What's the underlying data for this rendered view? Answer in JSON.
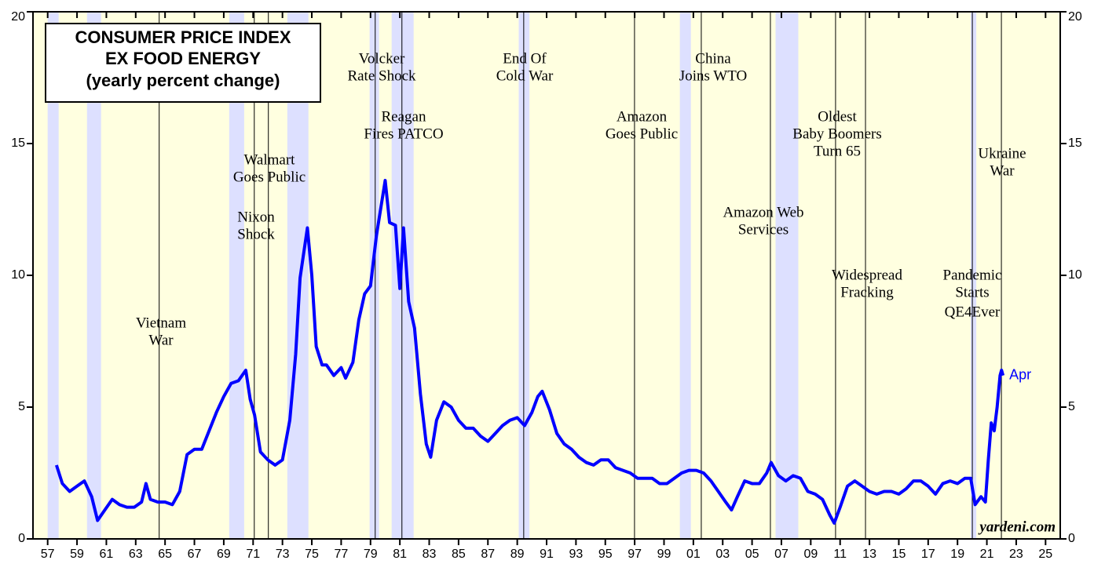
{
  "chart_data": {
    "type": "line",
    "title": [
      "CONSUMER PRICE INDEX",
      "EX FOOD ENERGY",
      "(yearly percent change)"
    ],
    "source": "yardeni.com",
    "end_label": "Apr",
    "xlim": [
      1956,
      2026
    ],
    "ylim": [
      0,
      20
    ],
    "yticks": [
      0,
      5,
      10,
      15,
      20
    ],
    "xticks": [
      {
        "value": 1957,
        "label": "57"
      },
      {
        "value": 1959,
        "label": "59"
      },
      {
        "value": 1961,
        "label": "61"
      },
      {
        "value": 1963,
        "label": "63"
      },
      {
        "value": 1965,
        "label": "65"
      },
      {
        "value": 1967,
        "label": "67"
      },
      {
        "value": 1969,
        "label": "69"
      },
      {
        "value": 1971,
        "label": "71"
      },
      {
        "value": 1973,
        "label": "73"
      },
      {
        "value": 1975,
        "label": "75"
      },
      {
        "value": 1977,
        "label": "77"
      },
      {
        "value": 1979,
        "label": "79"
      },
      {
        "value": 1981,
        "label": "81"
      },
      {
        "value": 1983,
        "label": "83"
      },
      {
        "value": 1985,
        "label": "85"
      },
      {
        "value": 1987,
        "label": "87"
      },
      {
        "value": 1989,
        "label": "89"
      },
      {
        "value": 1991,
        "label": "91"
      },
      {
        "value": 1993,
        "label": "93"
      },
      {
        "value": 1995,
        "label": "95"
      },
      {
        "value": 1997,
        "label": "97"
      },
      {
        "value": 1999,
        "label": "99"
      },
      {
        "value": 2001,
        "label": "01"
      },
      {
        "value": 2003,
        "label": "03"
      },
      {
        "value": 2005,
        "label": "05"
      },
      {
        "value": 2007,
        "label": "07"
      },
      {
        "value": 2009,
        "label": "09"
      },
      {
        "value": 2011,
        "label": "11"
      },
      {
        "value": 2013,
        "label": "13"
      },
      {
        "value": 2015,
        "label": "15"
      },
      {
        "value": 2017,
        "label": "17"
      },
      {
        "value": 2019,
        "label": "19"
      },
      {
        "value": 2021,
        "label": "21"
      },
      {
        "value": 2023,
        "label": "23"
      },
      {
        "value": 2025,
        "label": "25"
      }
    ],
    "recessions": [
      [
        1957.0,
        1957.75
      ],
      [
        1959.68,
        1960.64
      ],
      [
        1969.37,
        1970.39
      ],
      [
        1973.33,
        1974.77
      ],
      [
        1978.94,
        1979.58
      ],
      [
        1980.44,
        1981.94
      ],
      [
        1989.1,
        1989.83
      ],
      [
        2000.08,
        2000.83
      ],
      [
        2006.6,
        2008.15
      ],
      [
        2019.9,
        2020.28
      ]
    ],
    "annotations": [
      {
        "x": 1964.6,
        "lines": [
          "Vietnam",
          "War"
        ]
      },
      {
        "x": 1971.08,
        "lines": [
          "Nixon",
          "Shock"
        ]
      },
      {
        "x": 1972.04,
        "lines": [
          "Walmart",
          "Goes Public"
        ]
      },
      {
        "x": 1979.32,
        "lines": [
          "Volcker",
          "Rate Shock"
        ]
      },
      {
        "x": 1981.14,
        "lines": [
          "Reagan",
          "Fires PATCO"
        ]
      },
      {
        "x": 1989.44,
        "lines": [
          "End Of",
          "Cold War"
        ]
      },
      {
        "x": 1996.99,
        "lines": [
          "Amazon",
          "Goes Public"
        ]
      },
      {
        "x": 2001.54,
        "lines": [
          "China",
          "Joins WTO"
        ]
      },
      {
        "x": 2006.25,
        "lines": [
          "Amazon Web",
          "Services"
        ]
      },
      {
        "x": 2010.69,
        "lines": [
          "Oldest",
          "Baby Boomers",
          "Turn 65"
        ]
      },
      {
        "x": 2012.73,
        "lines": [
          "Widespread",
          "Fracking"
        ]
      },
      {
        "x": 2020.01,
        "lines": [
          "Pandemic",
          "Starts",
          "QE4Ever"
        ]
      },
      {
        "x": 2021.99,
        "lines": [
          "Ukraine",
          "War"
        ]
      }
    ],
    "series": [
      {
        "color": "#0000ff",
        "x": [
          1957.6,
          1958.0,
          1958.5,
          1959.0,
          1959.5,
          1960.0,
          1960.4,
          1960.9,
          1961.4,
          1961.9,
          1962.4,
          1962.9,
          1963.4,
          1963.7,
          1964.0,
          1964.5,
          1965.0,
          1965.5,
          1966.0,
          1966.5,
          1967.0,
          1967.5,
          1968.0,
          1968.5,
          1969.0,
          1969.5,
          1970.0,
          1970.5,
          1970.8,
          1971.1,
          1971.5,
          1972.0,
          1972.5,
          1973.0,
          1973.5,
          1973.9,
          1974.2,
          1974.7,
          1975.0,
          1975.3,
          1975.7,
          1976.0,
          1976.5,
          1977.0,
          1977.3,
          1977.8,
          1978.2,
          1978.6,
          1979.0,
          1979.4,
          1980.0,
          1980.3,
          1980.7,
          1981.0,
          1981.25,
          1981.6,
          1982.0,
          1982.4,
          1982.8,
          1983.1,
          1983.5,
          1984.0,
          1984.5,
          1985.0,
          1985.5,
          1986.0,
          1986.5,
          1987.0,
          1987.5,
          1988.0,
          1988.5,
          1989.0,
          1989.5,
          1990.0,
          1990.4,
          1990.7,
          1991.2,
          1991.7,
          1992.2,
          1992.7,
          1993.2,
          1993.7,
          1994.2,
          1994.7,
          1995.2,
          1995.7,
          1996.2,
          1996.7,
          1997.2,
          1997.7,
          1998.2,
          1998.7,
          1999.2,
          1999.7,
          2000.2,
          2000.7,
          2001.2,
          2001.7,
          2002.2,
          2002.7,
          2003.2,
          2003.6,
          2004.0,
          2004.5,
          2005.0,
          2005.5,
          2006.0,
          2006.3,
          2006.8,
          2007.3,
          2007.8,
          2008.3,
          2008.8,
          2009.3,
          2009.8,
          2010.3,
          2010.6,
          2011.0,
          2011.5,
          2012.0,
          2012.5,
          2013.0,
          2013.5,
          2014.0,
          2014.5,
          2015.0,
          2015.5,
          2016.0,
          2016.5,
          2017.0,
          2017.5,
          2018.0,
          2018.5,
          2019.0,
          2019.5,
          2019.9,
          2020.2,
          2020.6,
          2020.9,
          2021.1,
          2021.3,
          2021.5,
          2021.7,
          2021.9,
          2022.0,
          2022.1
        ],
        "values": [
          2.8,
          2.1,
          1.8,
          2.0,
          2.2,
          1.6,
          0.7,
          1.1,
          1.5,
          1.3,
          1.2,
          1.2,
          1.4,
          2.1,
          1.5,
          1.4,
          1.4,
          1.3,
          1.8,
          3.2,
          3.4,
          3.4,
          4.1,
          4.8,
          5.4,
          5.9,
          6.0,
          6.4,
          5.3,
          4.7,
          3.3,
          3.0,
          2.8,
          3.0,
          4.5,
          7.0,
          9.9,
          11.8,
          10.0,
          7.3,
          6.6,
          6.6,
          6.2,
          6.5,
          6.1,
          6.7,
          8.3,
          9.3,
          9.6,
          11.5,
          13.6,
          12.0,
          11.9,
          9.5,
          11.8,
          9.0,
          8.0,
          5.5,
          3.6,
          3.1,
          4.5,
          5.2,
          5.0,
          4.5,
          4.2,
          4.2,
          3.9,
          3.7,
          4.0,
          4.3,
          4.5,
          4.6,
          4.3,
          4.8,
          5.4,
          5.6,
          4.9,
          4.0,
          3.6,
          3.4,
          3.1,
          2.9,
          2.8,
          3.0,
          3.0,
          2.7,
          2.6,
          2.5,
          2.3,
          2.3,
          2.3,
          2.1,
          2.1,
          2.3,
          2.5,
          2.6,
          2.6,
          2.5,
          2.2,
          1.8,
          1.4,
          1.1,
          1.6,
          2.2,
          2.1,
          2.1,
          2.5,
          2.9,
          2.4,
          2.2,
          2.4,
          2.3,
          1.8,
          1.7,
          1.5,
          0.9,
          0.6,
          1.2,
          2.0,
          2.2,
          2.0,
          1.8,
          1.7,
          1.8,
          1.8,
          1.7,
          1.9,
          2.2,
          2.2,
          2.0,
          1.7,
          2.1,
          2.2,
          2.1,
          2.3,
          2.3,
          1.3,
          1.6,
          1.4,
          3.0,
          4.4,
          4.1,
          5.0,
          6.2,
          6.4,
          6.2
        ]
      }
    ]
  }
}
